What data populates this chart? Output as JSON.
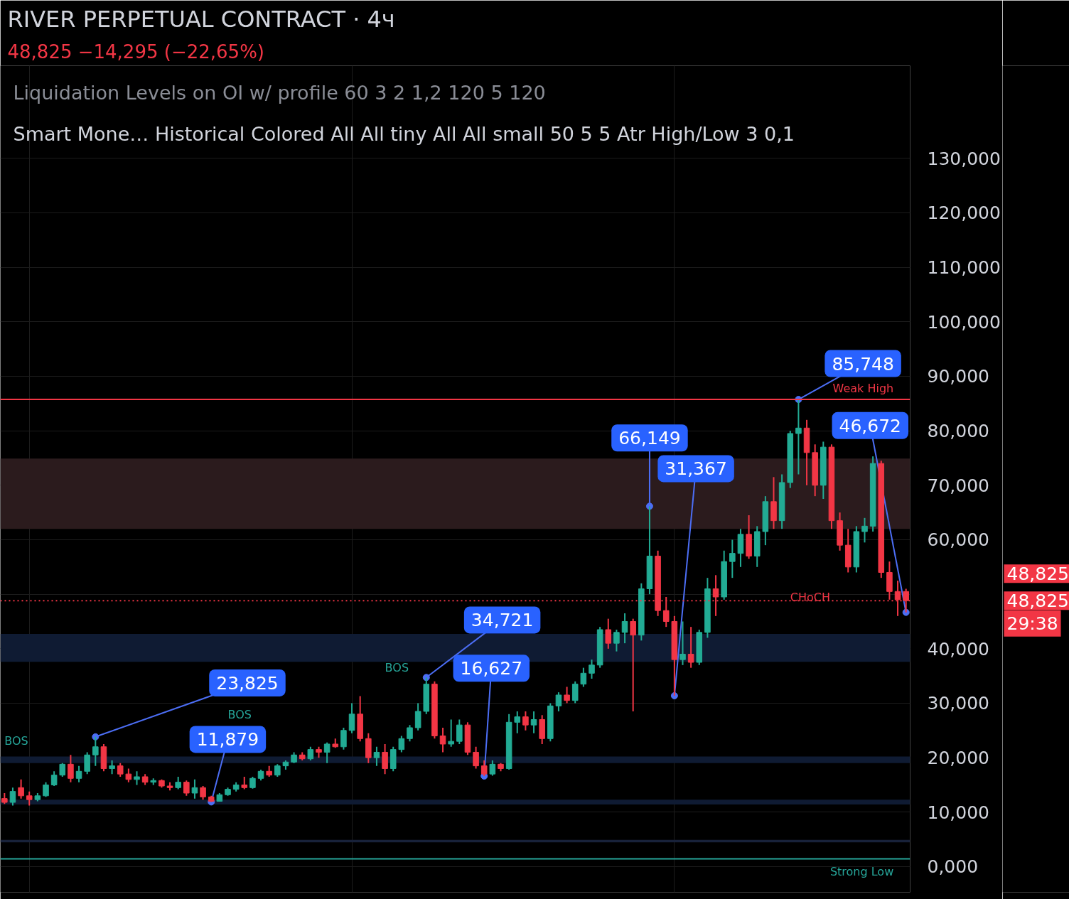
{
  "chart_data": {
    "type": "candlestick",
    "title": "RIVER PERPETUAL CONTRACT · 4ч",
    "subtitle": "48,825  −14,295 (−22,65%)",
    "categories": [
      null,
      null,
      null,
      null,
      null,
      null,
      null,
      null,
      null,
      null,
      null,
      null,
      null,
      null,
      null,
      null,
      null,
      null,
      null,
      null,
      null,
      null,
      null,
      null,
      null,
      null,
      null,
      null,
      null,
      null,
      null,
      null,
      null,
      null,
      null,
      null,
      null,
      null,
      null,
      null,
      null,
      null,
      null,
      null,
      null,
      null,
      null,
      null,
      null,
      null,
      null,
      null,
      null,
      null,
      null,
      null,
      null,
      null,
      null,
      null,
      null,
      null,
      null,
      null,
      null,
      null,
      null,
      null,
      null,
      null,
      null,
      null,
      null,
      null,
      null,
      null,
      null,
      null,
      null,
      null,
      null,
      null,
      null,
      null,
      null,
      null,
      null,
      null,
      null,
      null,
      null,
      null,
      null,
      null,
      null,
      null,
      null,
      null,
      null,
      null,
      null,
      null,
      null,
      null,
      null,
      null,
      null,
      null,
      null,
      null
    ],
    "ohlc": [
      [
        12.5,
        13.5,
        11.5,
        11.8
      ],
      [
        11.8,
        14.5,
        11.2,
        13.8
      ],
      [
        14.5,
        16.0,
        12.5,
        13.0
      ],
      [
        13.0,
        13.8,
        11.2,
        12.3
      ],
      [
        12.3,
        13.5,
        12.0,
        13.0
      ],
      [
        13.0,
        15.5,
        12.8,
        15.0
      ],
      [
        15.0,
        17.5,
        14.8,
        16.8
      ],
      [
        16.8,
        19.0,
        16.5,
        18.8
      ],
      [
        18.8,
        20.5,
        15.5,
        16.2
      ],
      [
        16.2,
        18.5,
        15.5,
        17.5
      ],
      [
        17.5,
        21.0,
        17.0,
        20.5
      ],
      [
        20.5,
        23.825,
        18.5,
        22.0
      ],
      [
        22.0,
        22.5,
        17.5,
        18.0
      ],
      [
        18.0,
        19.5,
        17.0,
        18.5
      ],
      [
        18.5,
        19.0,
        16.5,
        17.0
      ],
      [
        17.0,
        18.0,
        15.5,
        16.0
      ],
      [
        16.0,
        17.5,
        15.0,
        16.5
      ],
      [
        16.5,
        17.0,
        15.0,
        15.5
      ],
      [
        15.5,
        16.2,
        15.0,
        15.8
      ],
      [
        15.8,
        16.0,
        14.5,
        14.8
      ],
      [
        14.8,
        15.5,
        14.0,
        14.5
      ],
      [
        14.5,
        16.5,
        14.2,
        15.5
      ],
      [
        15.5,
        15.8,
        13.0,
        13.5
      ],
      [
        13.5,
        16.0,
        12.5,
        14.5
      ],
      [
        14.5,
        14.8,
        12.3,
        12.8
      ],
      [
        12.8,
        13.0,
        11.879,
        12.0
      ],
      [
        12.0,
        13.5,
        11.95,
        13.2
      ],
      [
        13.2,
        14.5,
        13.0,
        14.2
      ],
      [
        14.2,
        15.5,
        13.8,
        15.0
      ],
      [
        15.0,
        16.5,
        14.2,
        14.5
      ],
      [
        14.5,
        16.5,
        14.3,
        16.2
      ],
      [
        16.2,
        17.8,
        15.8,
        17.5
      ],
      [
        17.5,
        18.5,
        16.5,
        16.8
      ],
      [
        16.8,
        18.8,
        16.5,
        18.5
      ],
      [
        18.5,
        19.5,
        17.8,
        19.2
      ],
      [
        19.2,
        21.0,
        19.0,
        20.5
      ],
      [
        20.5,
        21.0,
        19.5,
        19.8
      ],
      [
        19.8,
        22.0,
        19.5,
        21.5
      ],
      [
        21.5,
        22.0,
        20.0,
        21.0
      ],
      [
        21.0,
        22.8,
        19.0,
        22.5
      ],
      [
        22.5,
        23.5,
        21.8,
        22.0
      ],
      [
        22.0,
        25.5,
        21.5,
        25.0
      ],
      [
        25.0,
        30.0,
        24.5,
        28.0
      ],
      [
        28.0,
        31.3,
        23.0,
        23.5
      ],
      [
        23.5,
        24.5,
        19.0,
        20.0
      ],
      [
        20.0,
        22.0,
        18.5,
        21.0
      ],
      [
        21.0,
        22.5,
        17.0,
        18.0
      ],
      [
        18.0,
        22.0,
        17.5,
        21.5
      ],
      [
        21.5,
        24.0,
        21.0,
        23.5
      ],
      [
        23.5,
        26.0,
        23.0,
        25.5
      ],
      [
        25.5,
        30.0,
        25.0,
        28.5
      ],
      [
        28.5,
        34.721,
        28.0,
        33.5
      ],
      [
        33.5,
        34.0,
        23.5,
        24.0
      ],
      [
        24.0,
        25.5,
        21.0,
        22.5
      ],
      [
        22.5,
        27.0,
        22.0,
        23.0
      ],
      [
        23.0,
        27.0,
        22.5,
        26.0
      ],
      [
        26.0,
        26.5,
        20.5,
        21.0
      ],
      [
        21.0,
        22.0,
        18.0,
        18.5
      ],
      [
        18.5,
        19.5,
        16.627,
        17.0
      ],
      [
        17.0,
        19.5,
        16.7,
        18.8
      ],
      [
        18.8,
        19.0,
        17.5,
        18.0
      ],
      [
        18.0,
        28.0,
        17.8,
        26.5
      ],
      [
        26.5,
        28.5,
        24.5,
        27.5
      ],
      [
        27.5,
        28.5,
        25.0,
        26.0
      ],
      [
        26.0,
        28.5,
        24.5,
        27.0
      ],
      [
        27.0,
        27.8,
        22.5,
        23.5
      ],
      [
        23.5,
        30.0,
        23.0,
        29.5
      ],
      [
        29.5,
        32.0,
        28.5,
        31.5
      ],
      [
        31.5,
        33.0,
        30.0,
        30.5
      ],
      [
        30.5,
        34.0,
        30.0,
        33.5
      ],
      [
        33.5,
        36.5,
        33.0,
        35.5
      ],
      [
        35.5,
        38.0,
        34.5,
        37.0
      ],
      [
        37.0,
        44.0,
        36.5,
        43.5
      ],
      [
        43.5,
        45.5,
        40.0,
        41.0
      ],
      [
        41.0,
        43.5,
        39.5,
        43.0
      ],
      [
        43.0,
        46.5,
        41.0,
        45.0
      ],
      [
        45.0,
        45.5,
        28.5,
        42.5
      ],
      [
        42.5,
        52.0,
        41.5,
        51.0
      ],
      [
        51.0,
        66.149,
        50.0,
        57.0
      ],
      [
        57.0,
        58.0,
        46.0,
        47.0
      ],
      [
        47.0,
        49.5,
        44.0,
        45.0
      ],
      [
        45.0,
        46.0,
        31.367,
        38.0
      ],
      [
        38.0,
        45.0,
        37.0,
        39.0
      ],
      [
        39.0,
        44.0,
        36.5,
        37.5
      ],
      [
        37.5,
        43.5,
        37.0,
        43.0
      ],
      [
        43.0,
        53.0,
        42.0,
        51.0
      ],
      [
        51.0,
        53.5,
        46.0,
        49.5
      ],
      [
        49.5,
        58.0,
        49.0,
        56.0
      ],
      [
        56.0,
        60.0,
        53.0,
        57.5
      ],
      [
        57.5,
        62.0,
        55.0,
        61.0
      ],
      [
        61.0,
        64.5,
        56.5,
        57.0
      ],
      [
        57.0,
        62.5,
        55.0,
        61.5
      ],
      [
        61.5,
        68.0,
        59.0,
        67.0
      ],
      [
        67.0,
        71.5,
        62.0,
        63.5
      ],
      [
        63.5,
        72.0,
        62.0,
        70.5
      ],
      [
        70.5,
        80.0,
        69.5,
        79.5
      ],
      [
        79.5,
        85.748,
        72.0,
        80.5
      ],
      [
        80.5,
        82.0,
        70.0,
        76.0
      ],
      [
        76.0,
        77.5,
        68.0,
        70.0
      ],
      [
        70.0,
        78.0,
        67.5,
        77.0
      ],
      [
        77.0,
        77.5,
        62.0,
        63.5
      ],
      [
        63.5,
        65.0,
        58.0,
        59.0
      ],
      [
        59.0,
        62.0,
        54.0,
        55.0
      ],
      [
        55.0,
        62.5,
        54.0,
        61.5
      ],
      [
        61.5,
        64.0,
        59.5,
        62.5
      ],
      [
        62.5,
        75.3,
        61.5,
        74.0
      ],
      [
        74.0,
        74.5,
        53.0,
        54.0
      ],
      [
        54.0,
        56.0,
        49.0,
        50.5
      ],
      [
        50.5,
        52.5,
        46.0,
        49.0
      ],
      [
        50.5,
        51.0,
        46.672,
        48.825
      ]
    ],
    "ylim": [
      -4.7,
      147
    ],
    "yticks": [
      {
        "value": 0,
        "label": "0,000"
      },
      {
        "value": 10,
        "label": "10,000"
      },
      {
        "value": 20,
        "label": "20,000"
      },
      {
        "value": 30,
        "label": "30,000"
      },
      {
        "value": 40,
        "label": "40,000"
      },
      {
        "value": 50,
        "label": null
      },
      {
        "value": 60,
        "label": "60,000"
      },
      {
        "value": 70,
        "label": "70,000"
      },
      {
        "value": 80,
        "label": "80,000"
      },
      {
        "value": 90,
        "label": "90,000"
      },
      {
        "value": 100,
        "label": "100,000"
      },
      {
        "value": 110,
        "label": "110,000"
      },
      {
        "value": 120,
        "label": "120,000"
      },
      {
        "value": 130,
        "label": "130,000"
      }
    ],
    "tick_labels": "y",
    "grid": true,
    "ref_lines": [
      {
        "axis": "y",
        "value": 85.748,
        "label": "Weak High",
        "color": "#f23645",
        "line_style": "solid"
      },
      {
        "axis": "y",
        "value": 48.825,
        "color": "#f23645",
        "line_style": "dotted"
      },
      {
        "axis": "y",
        "value": 1.44,
        "label": "Strong Low",
        "color": "#26a69a",
        "line_style": "solid"
      }
    ],
    "bands": [
      {
        "axis": "y",
        "from": 62.0,
        "to": 74.9,
        "color": "#2b1b1d"
      },
      {
        "axis": "y",
        "from": 37.6,
        "to": 42.7,
        "color": "#0f1b33"
      },
      {
        "axis": "y",
        "from": 19.0,
        "to": 20.2,
        "color": "#0f1b33"
      },
      {
        "axis": "y",
        "from": 11.4,
        "to": 12.3,
        "color": "#0f1b33"
      },
      {
        "axis": "y",
        "from": 4.45,
        "to": 4.93,
        "color": "#18223a"
      }
    ],
    "annotations": [
      "Liquidation Levels on OI w/ profile 60 3 2 1,2 120 5 120",
      "Smart Mone… Historical Colored All All tiny All All small 50 5 5 Atr High/Low 3 0,1",
      "23,825",
      "11,879",
      "34,721",
      "16,627",
      "66,149",
      "31,367",
      "85,748",
      "46,672",
      "BOS",
      "BOS",
      "BOS",
      "CHoCH",
      "48,825",
      "48,825",
      "29:38"
    ]
  }
}
